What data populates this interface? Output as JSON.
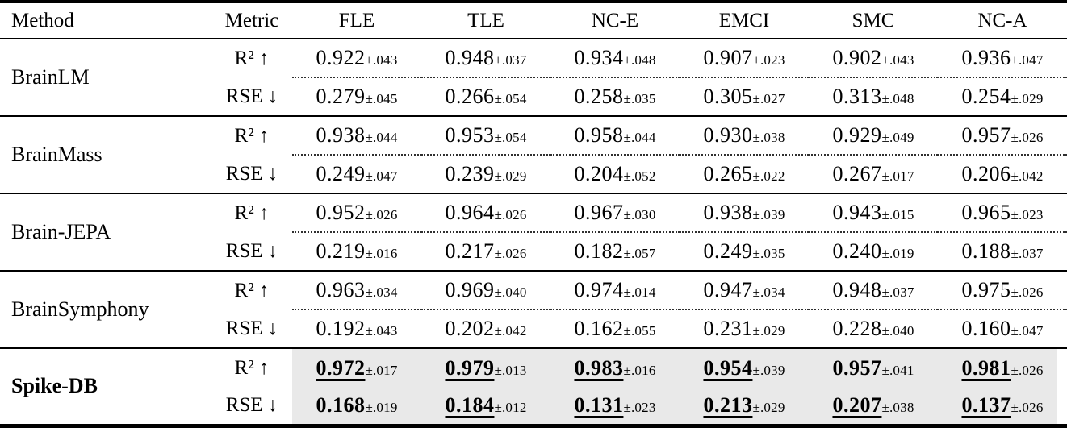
{
  "colors": {
    "highlight": "#e9e9e9",
    "text": "#000000",
    "background": "#ffffff"
  },
  "table": {
    "headers": [
      "Method",
      "Metric",
      "FLE",
      "TLE",
      "NC-E",
      "EMCI",
      "SMC",
      "NC-A"
    ],
    "methods": [
      {
        "name": "BrainLM",
        "emphasis": false,
        "rows": [
          {
            "metric": "R² ↑",
            "cells": [
              {
                "v": "0.922",
                "e": "±.043",
                "b": false,
                "u": false
              },
              {
                "v": "0.948",
                "e": "±.037",
                "b": false,
                "u": false
              },
              {
                "v": "0.934",
                "e": "±.048",
                "b": false,
                "u": false
              },
              {
                "v": "0.907",
                "e": "±.023",
                "b": false,
                "u": false
              },
              {
                "v": "0.902",
                "e": "±.043",
                "b": false,
                "u": false
              },
              {
                "v": "0.936",
                "e": "±.047",
                "b": false,
                "u": false
              }
            ]
          },
          {
            "metric": "RSE ↓",
            "cells": [
              {
                "v": "0.279",
                "e": "±.045",
                "b": false,
                "u": false
              },
              {
                "v": "0.266",
                "e": "±.054",
                "b": false,
                "u": false
              },
              {
                "v": "0.258",
                "e": "±.035",
                "b": false,
                "u": false
              },
              {
                "v": "0.305",
                "e": "±.027",
                "b": false,
                "u": false
              },
              {
                "v": "0.313",
                "e": "±.048",
                "b": false,
                "u": false
              },
              {
                "v": "0.254",
                "e": "±.029",
                "b": false,
                "u": false
              }
            ]
          }
        ]
      },
      {
        "name": "BrainMass",
        "emphasis": false,
        "rows": [
          {
            "metric": "R² ↑",
            "cells": [
              {
                "v": "0.938",
                "e": "±.044",
                "b": false,
                "u": false
              },
              {
                "v": "0.953",
                "e": "±.054",
                "b": false,
                "u": false
              },
              {
                "v": "0.958",
                "e": "±.044",
                "b": false,
                "u": false
              },
              {
                "v": "0.930",
                "e": "±.038",
                "b": false,
                "u": false
              },
              {
                "v": "0.929",
                "e": "±.049",
                "b": false,
                "u": false
              },
              {
                "v": "0.957",
                "e": "±.026",
                "b": false,
                "u": false
              }
            ]
          },
          {
            "metric": "RSE ↓",
            "cells": [
              {
                "v": "0.249",
                "e": "±.047",
                "b": false,
                "u": false
              },
              {
                "v": "0.239",
                "e": "±.029",
                "b": false,
                "u": false
              },
              {
                "v": "0.204",
                "e": "±.052",
                "b": false,
                "u": false
              },
              {
                "v": "0.265",
                "e": "±.022",
                "b": false,
                "u": false
              },
              {
                "v": "0.267",
                "e": "±.017",
                "b": false,
                "u": false
              },
              {
                "v": "0.206",
                "e": "±.042",
                "b": false,
                "u": false
              }
            ]
          }
        ]
      },
      {
        "name": "Brain-JEPA",
        "emphasis": false,
        "rows": [
          {
            "metric": "R² ↑",
            "cells": [
              {
                "v": "0.952",
                "e": "±.026",
                "b": false,
                "u": false
              },
              {
                "v": "0.964",
                "e": "±.026",
                "b": false,
                "u": false
              },
              {
                "v": "0.967",
                "e": "±.030",
                "b": false,
                "u": false
              },
              {
                "v": "0.938",
                "e": "±.039",
                "b": false,
                "u": false
              },
              {
                "v": "0.943",
                "e": "±.015",
                "b": false,
                "u": false
              },
              {
                "v": "0.965",
                "e": "±.023",
                "b": false,
                "u": false
              }
            ]
          },
          {
            "metric": "RSE ↓",
            "cells": [
              {
                "v": "0.219",
                "e": "±.016",
                "b": false,
                "u": false
              },
              {
                "v": "0.217",
                "e": "±.026",
                "b": false,
                "u": false
              },
              {
                "v": "0.182",
                "e": "±.057",
                "b": false,
                "u": false
              },
              {
                "v": "0.249",
                "e": "±.035",
                "b": false,
                "u": false
              },
              {
                "v": "0.240",
                "e": "±.019",
                "b": false,
                "u": false
              },
              {
                "v": "0.188",
                "e": "±.037",
                "b": false,
                "u": false
              }
            ]
          }
        ]
      },
      {
        "name": "BrainSymphony",
        "emphasis": false,
        "rows": [
          {
            "metric": "R² ↑",
            "cells": [
              {
                "v": "0.963",
                "e": "±.034",
                "b": false,
                "u": false
              },
              {
                "v": "0.969",
                "e": "±.040",
                "b": false,
                "u": false
              },
              {
                "v": "0.974",
                "e": "±.014",
                "b": false,
                "u": false
              },
              {
                "v": "0.947",
                "e": "±.034",
                "b": false,
                "u": false
              },
              {
                "v": "0.948",
                "e": "±.037",
                "b": false,
                "u": false
              },
              {
                "v": "0.975",
                "e": "±.026",
                "b": false,
                "u": false
              }
            ]
          },
          {
            "metric": "RSE ↓",
            "cells": [
              {
                "v": "0.192",
                "e": "±.043",
                "b": false,
                "u": false
              },
              {
                "v": "0.202",
                "e": "±.042",
                "b": false,
                "u": false
              },
              {
                "v": "0.162",
                "e": "±.055",
                "b": false,
                "u": false
              },
              {
                "v": "0.231",
                "e": "±.029",
                "b": false,
                "u": false
              },
              {
                "v": "0.228",
                "e": "±.040",
                "b": false,
                "u": false
              },
              {
                "v": "0.160",
                "e": "±.047",
                "b": false,
                "u": false
              }
            ]
          }
        ]
      },
      {
        "name": "Spike-DB",
        "emphasis": true,
        "rows": [
          {
            "metric": "R² ↑",
            "cells": [
              {
                "v": "0.972",
                "e": "±.017",
                "b": true,
                "u": true
              },
              {
                "v": "0.979",
                "e": "±.013",
                "b": true,
                "u": true
              },
              {
                "v": "0.983",
                "e": "±.016",
                "b": true,
                "u": true
              },
              {
                "v": "0.954",
                "e": "±.039",
                "b": true,
                "u": true
              },
              {
                "v": "0.957",
                "e": "±.041",
                "b": true,
                "u": false
              },
              {
                "v": "0.981",
                "e": "±.026",
                "b": true,
                "u": true
              }
            ]
          },
          {
            "metric": "RSE ↓",
            "cells": [
              {
                "v": "0.168",
                "e": "±.019",
                "b": true,
                "u": false
              },
              {
                "v": "0.184",
                "e": "±.012",
                "b": true,
                "u": true
              },
              {
                "v": "0.131",
                "e": "±.023",
                "b": true,
                "u": true
              },
              {
                "v": "0.213",
                "e": "±.029",
                "b": true,
                "u": true
              },
              {
                "v": "0.207",
                "e": "±.038",
                "b": true,
                "u": true
              },
              {
                "v": "0.137",
                "e": "±.026",
                "b": true,
                "u": true
              }
            ]
          }
        ]
      }
    ]
  }
}
